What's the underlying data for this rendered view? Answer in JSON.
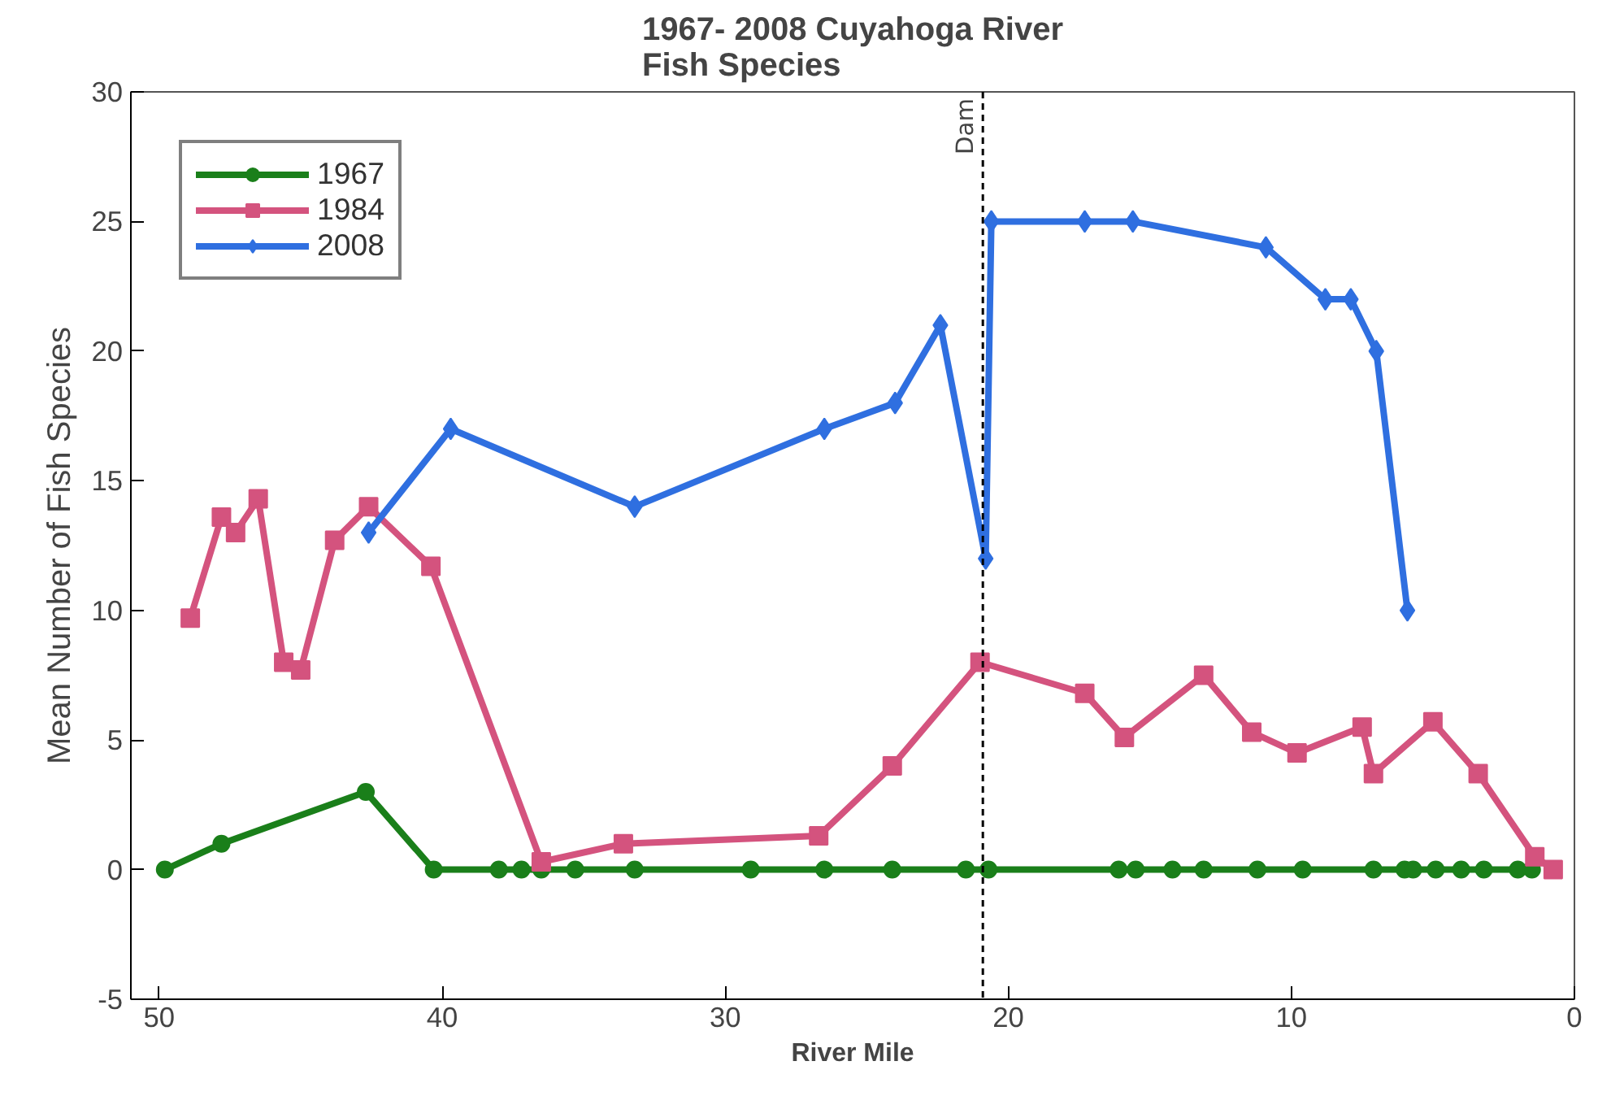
{
  "chart_data": {
    "type": "line",
    "title": "1967- 2008 Cuyahoga River\nFish Species",
    "xlabel": "River Mile",
    "ylabel": "Mean Number of Fish Species",
    "xlim": [
      51,
      0
    ],
    "xticks": [
      50,
      40,
      30,
      20,
      10,
      0
    ],
    "ylim": [
      -5,
      30
    ],
    "yticks": [
      -5,
      0,
      5,
      10,
      15,
      20,
      25,
      30
    ],
    "grid": false,
    "legend": "top left",
    "line_style": "solid",
    "ref_lines": [
      {
        "axis": "x",
        "value": 20.9,
        "label": "Dam",
        "color": "#000000",
        "line_style": "dashed"
      }
    ],
    "series": [
      {
        "name": "1967",
        "color": "#1a7f1a",
        "marker": "circle",
        "x": [
          49.8,
          47.8,
          42.7,
          40.3,
          38.0,
          37.2,
          36.5,
          35.3,
          33.2,
          29.1,
          26.5,
          24.1,
          21.5,
          20.7,
          16.1,
          15.5,
          14.2,
          13.1,
          11.2,
          9.6,
          7.1,
          6.0,
          5.7,
          4.9,
          4.0,
          3.2,
          2.0,
          1.5
        ],
        "values": [
          0,
          1,
          3,
          0,
          0,
          0,
          0,
          0,
          0,
          0,
          0,
          0,
          0,
          0,
          0,
          0,
          0,
          0,
          0,
          0,
          0,
          0,
          0,
          0,
          0,
          0,
          0,
          0
        ]
      },
      {
        "name": "1984",
        "color": "#d4537e",
        "marker": "square",
        "x": [
          48.9,
          47.8,
          47.3,
          46.5,
          45.6,
          45.0,
          43.8,
          42.6,
          40.4,
          36.5,
          33.6,
          26.7,
          24.1,
          21.0,
          17.3,
          15.9,
          13.1,
          11.4,
          9.8,
          7.5,
          7.1,
          5.0,
          3.4,
          1.4,
          0.75
        ],
        "values": [
          9.7,
          13.6,
          13.0,
          14.3,
          8.0,
          7.7,
          12.7,
          14.0,
          11.7,
          0.3,
          1.0,
          1.3,
          4.0,
          8.0,
          6.8,
          5.1,
          7.5,
          5.3,
          4.5,
          5.5,
          3.7,
          5.7,
          3.7,
          0.5,
          0
        ]
      },
      {
        "name": "2008",
        "color": "#2f6fe0",
        "marker": "diamond",
        "x": [
          42.6,
          39.7,
          33.2,
          26.5,
          24.0,
          22.4,
          20.8,
          20.6,
          17.3,
          15.6,
          10.9,
          8.8,
          7.9,
          7.0,
          5.9
        ],
        "values": [
          13,
          17,
          14,
          17,
          18,
          21,
          12,
          25,
          25,
          25,
          24,
          22,
          22,
          20,
          10
        ]
      }
    ]
  }
}
